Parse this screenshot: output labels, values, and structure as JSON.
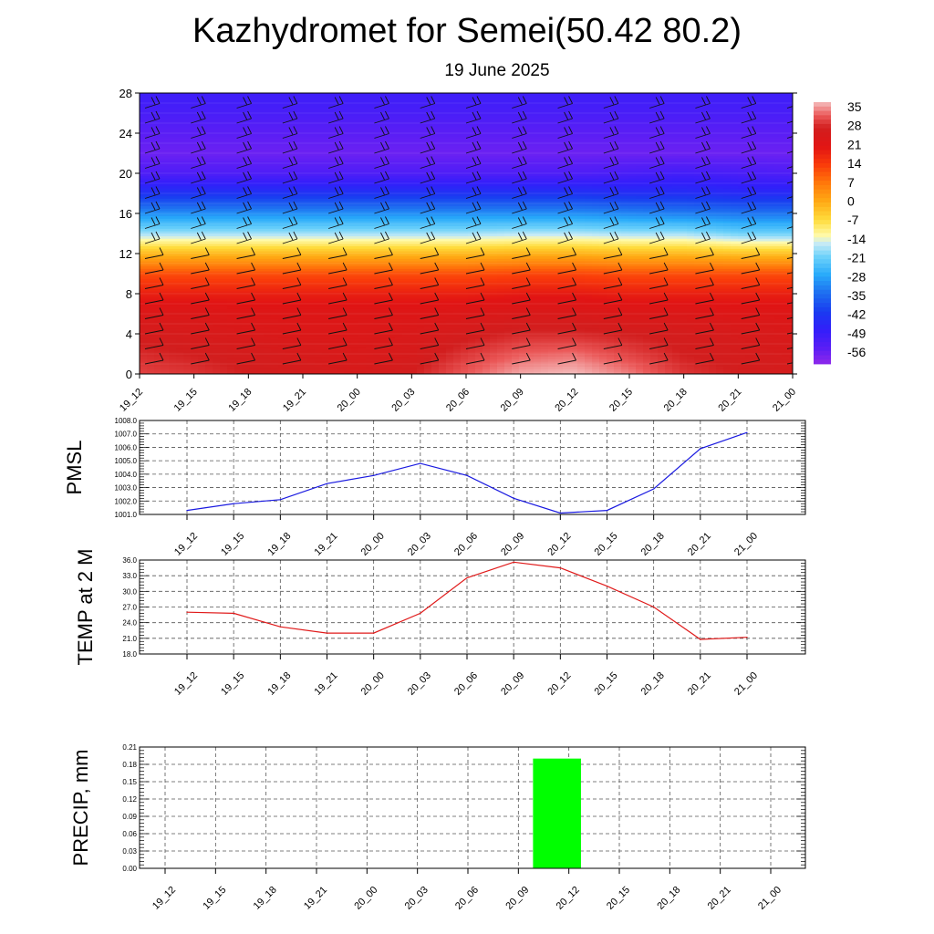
{
  "title": "Kazhydromet for Semei(50.42 80.2)",
  "subtitle": "19 June 2025",
  "chart_data": [
    {
      "type": "heatmap",
      "x_categories": [
        "19_12",
        "19_15",
        "19_18",
        "19_21",
        "20_00",
        "20_03",
        "20_06",
        "20_09",
        "20_12",
        "20_15",
        "20_18",
        "20_21",
        "21_00"
      ],
      "y_ticks": [
        0,
        4,
        8,
        12,
        16,
        20,
        24,
        28
      ],
      "ylim": [
        0,
        28
      ],
      "colorbar_ticks": [
        35,
        28,
        21,
        14,
        7,
        0,
        -7,
        -14,
        -21,
        -28,
        -35,
        -42,
        -49,
        -56
      ],
      "colorbar_range": [
        -62,
        38
      ],
      "colorbar_placement": "right",
      "rows": [
        {
          "y": 0,
          "values": [
            31,
            30,
            28,
            27,
            26,
            28,
            33,
            37,
            38,
            35,
            30,
            28,
            27
          ]
        },
        {
          "y": 2,
          "values": [
            29,
            28,
            27,
            26,
            25,
            26,
            30,
            33,
            34,
            31,
            28,
            27,
            26
          ]
        },
        {
          "y": 4,
          "values": [
            27,
            26,
            25,
            24,
            24,
            25,
            27,
            29,
            29,
            28,
            27,
            26,
            25
          ]
        },
        {
          "y": 6,
          "values": [
            24,
            24,
            23,
            23,
            23,
            23,
            24,
            25,
            25,
            24,
            24,
            23,
            23
          ]
        },
        {
          "y": 8,
          "values": [
            19,
            19,
            19,
            19,
            19,
            19,
            19,
            20,
            20,
            19,
            19,
            19,
            19
          ]
        },
        {
          "y": 10,
          "values": [
            12,
            12,
            12,
            12,
            12,
            12,
            12,
            13,
            13,
            12,
            12,
            12,
            12
          ]
        },
        {
          "y": 12,
          "values": [
            -2,
            -2,
            -2,
            -2,
            -2,
            -2,
            -2,
            -1,
            -1,
            -2,
            -2,
            -3,
            -3
          ]
        },
        {
          "y": 13,
          "values": [
            -10,
            -10,
            -10,
            -10,
            -10,
            -10,
            -10,
            -9,
            -9,
            -10,
            -10,
            -12,
            -12
          ]
        },
        {
          "y": 14,
          "values": [
            -18,
            -18,
            -18,
            -18,
            -18,
            -18,
            -18,
            -17,
            -17,
            -18,
            -18,
            -21,
            -21
          ]
        },
        {
          "y": 16,
          "values": [
            -31,
            -31,
            -31,
            -31,
            -31,
            -31,
            -31,
            -31,
            -31,
            -32,
            -33,
            -34,
            -34
          ]
        },
        {
          "y": 18,
          "values": [
            -44,
            -44,
            -44,
            -44,
            -44,
            -44,
            -44,
            -44,
            -44,
            -45,
            -45,
            -46,
            -46
          ]
        },
        {
          "y": 20,
          "values": [
            -54,
            -54,
            -54,
            -54,
            -54,
            -54,
            -54,
            -54,
            -54,
            -53,
            -52,
            -53,
            -54
          ]
        },
        {
          "y": 22,
          "values": [
            -58,
            -58,
            -58,
            -58,
            -58,
            -58,
            -58,
            -58,
            -58,
            -58,
            -58,
            -58,
            -58
          ]
        },
        {
          "y": 24,
          "values": [
            -56,
            -56,
            -56,
            -56,
            -56,
            -56,
            -56,
            -56,
            -56,
            -56,
            -56,
            -56,
            -56
          ]
        },
        {
          "y": 26,
          "values": [
            -53,
            -53,
            -53,
            -53,
            -53,
            -53,
            -53,
            -53,
            -53,
            -53,
            -53,
            -53,
            -53
          ]
        },
        {
          "y": 28,
          "values": [
            -51,
            -51,
            -51,
            -51,
            -51,
            -51,
            -51,
            -51,
            -51,
            -51,
            -51,
            -51,
            -51
          ]
        }
      ],
      "barbs": true
    },
    {
      "type": "line",
      "ylabel": "PMSL",
      "x_categories": [
        "19_12",
        "19_15",
        "19_18",
        "19_21",
        "20_00",
        "20_03",
        "20_06",
        "20_09",
        "20_12",
        "20_15",
        "20_18",
        "20_21",
        "21_00"
      ],
      "values": [
        1001.3,
        1001.8,
        1002.1,
        1003.3,
        1003.9,
        1004.8,
        1003.9,
        1002.2,
        1001.1,
        1001.3,
        1002.9,
        1005.9,
        1007.1
      ],
      "y_ticks": [
        "1001.0",
        "1002.0",
        "1003.0",
        "1004.0",
        "1005.0",
        "1006.0",
        "1007.0",
        "1008.0"
      ],
      "ylim": [
        1001.0,
        1008.0
      ],
      "color": "#1a1ae0",
      "grid": true
    },
    {
      "type": "line",
      "ylabel": "TEMP at 2 M",
      "x_categories": [
        "19_12",
        "19_15",
        "19_18",
        "19_21",
        "20_00",
        "20_03",
        "20_06",
        "20_09",
        "20_12",
        "20_15",
        "20_18",
        "20_21",
        "21_00"
      ],
      "values": [
        26.0,
        25.8,
        23.2,
        22.0,
        22.0,
        25.8,
        32.6,
        35.6,
        34.5,
        31.0,
        27.0,
        20.8,
        21.2
      ],
      "y_ticks": [
        "18.0",
        "21.0",
        "24.0",
        "27.0",
        "30.0",
        "33.0",
        "36.0"
      ],
      "ylim": [
        18.0,
        36.0
      ],
      "color": "#e01a1a",
      "grid": true
    },
    {
      "type": "bar",
      "ylabel": "PRECIP, mm",
      "x_categories": [
        "19_12",
        "19_15",
        "19_18",
        "19_21",
        "20_00",
        "20_03",
        "20_06",
        "20_09",
        "20_12",
        "20_15",
        "20_18",
        "20_21",
        "21_00"
      ],
      "values": [
        0,
        0,
        0,
        0,
        0,
        0,
        0,
        0,
        0.19,
        0,
        0,
        0,
        0
      ],
      "y_ticks": [
        "0.00",
        "0.03",
        "0.06",
        "0.09",
        "0.12",
        "0.15",
        "0.18",
        "0.21"
      ],
      "ylim": [
        0,
        0.21
      ],
      "color": "#00ff00",
      "grid": true
    }
  ]
}
